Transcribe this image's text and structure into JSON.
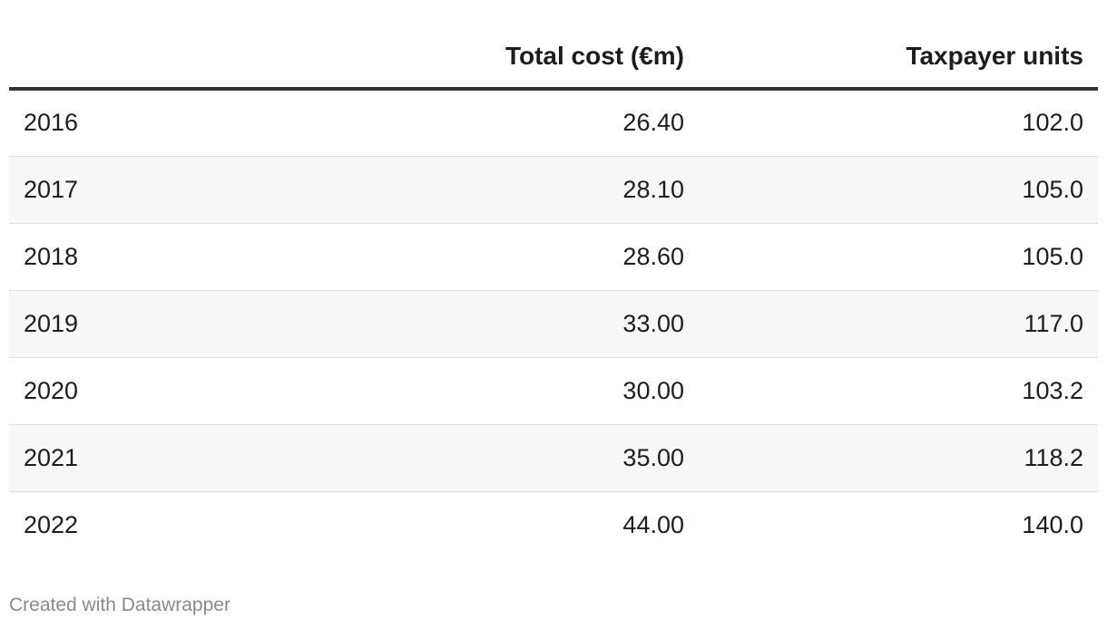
{
  "chart_data": {
    "type": "table",
    "columns": [
      "",
      "Total cost (€m)",
      "Taxpayer units"
    ],
    "rows": [
      {
        "year": "2016",
        "total_cost": "26.40",
        "taxpayer_units": "102.0"
      },
      {
        "year": "2017",
        "total_cost": "28.10",
        "taxpayer_units": "105.0"
      },
      {
        "year": "2018",
        "total_cost": "28.60",
        "taxpayer_units": "105.0"
      },
      {
        "year": "2019",
        "total_cost": "33.00",
        "taxpayer_units": "117.0"
      },
      {
        "year": "2020",
        "total_cost": "30.00",
        "taxpayer_units": "103.2"
      },
      {
        "year": "2021",
        "total_cost": "35.00",
        "taxpayer_units": "118.2"
      },
      {
        "year": "2022",
        "total_cost": "44.00",
        "taxpayer_units": "140.0"
      }
    ],
    "striped_rows": true
  },
  "footer": {
    "credit": "Created with Datawrapper"
  },
  "colors": {
    "header_rule": "#333333",
    "stripe": "#f7f7f7",
    "row_rule": "#e0e0e0",
    "footer_text": "#8a8a8a"
  }
}
